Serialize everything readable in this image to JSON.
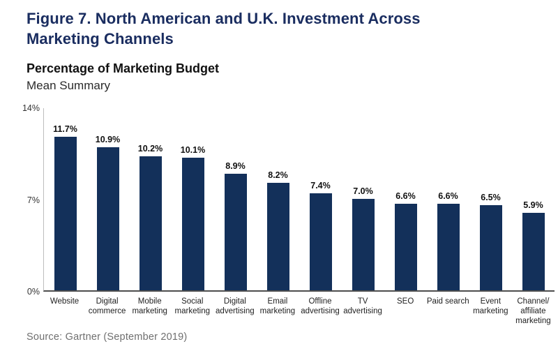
{
  "header": {
    "title_line1": "Figure 7. North American and U.K. Investment Across",
    "title_line2": "Marketing Channels",
    "subtitle": "Percentage of Marketing Budget",
    "subtitle2": "Mean Summary"
  },
  "axis": {
    "y_top": "14%",
    "y_mid": "7%",
    "y_zero": "0%"
  },
  "colors": {
    "bar": "#13305a",
    "title": "#1a2d60",
    "axis_line": "#bdbdbd",
    "baseline": "#4d4d4d",
    "source_text": "#6f6f6f"
  },
  "footer": {
    "source": "Source: Gartner (September 2019)"
  },
  "chart_data": {
    "type": "bar",
    "title": "Figure 7. North American and U.K. Investment Across Marketing Channels",
    "subtitle": "Percentage of Marketing Budget",
    "subtitle2": "Mean Summary",
    "xlabel": "",
    "ylabel": "",
    "ylim": [
      0,
      14
    ],
    "yticks": [
      "0%",
      "7%",
      "14%"
    ],
    "grid": false,
    "legend": false,
    "data_labels": true,
    "bar_color": "#13305a",
    "categories": [
      "Website",
      "Digital commerce",
      "Mobile marketing",
      "Social marketing",
      "Digital advertising",
      "Email marketing",
      "Offline advertising",
      "TV advertising",
      "SEO",
      "Paid search",
      "Event marketing",
      "Channel/affiliate marketing"
    ],
    "values": [
      11.7,
      10.9,
      10.2,
      10.1,
      8.9,
      8.2,
      7.4,
      7.0,
      6.6,
      6.6,
      6.5,
      5.9
    ],
    "bars": [
      {
        "label_display": "Website",
        "value": 11.7
      },
      {
        "label_display": "Digital\ncommerce",
        "value": 10.9
      },
      {
        "label_display": "Mobile\nmarketing",
        "value": 10.2
      },
      {
        "label_display": "Social\nmarketing",
        "value": 10.1
      },
      {
        "label_display": "Digital\nadvertising",
        "value": 8.9
      },
      {
        "label_display": "Email\nmarketing",
        "value": 8.2
      },
      {
        "label_display": "Offline\nadvertising",
        "value": 7.4
      },
      {
        "label_display": "TV\nadvertising",
        "value": 7.0
      },
      {
        "label_display": "SEO",
        "value": 6.6
      },
      {
        "label_display": "Paid search",
        "value": 6.6
      },
      {
        "label_display": "Event\nmarketing",
        "value": 6.5
      },
      {
        "label_display": "Channel/\naffiliate\nmarketing",
        "value": 5.9
      }
    ]
  }
}
